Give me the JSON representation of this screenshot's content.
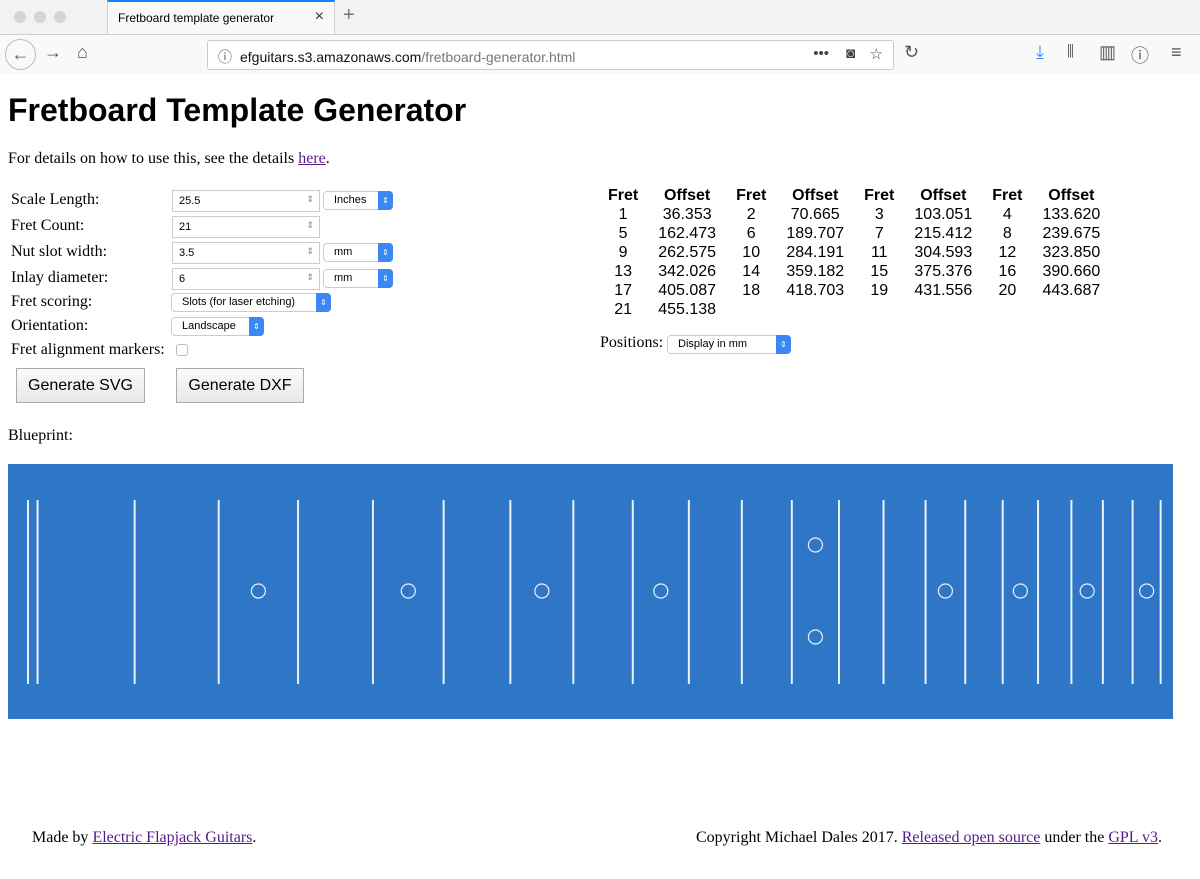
{
  "browser": {
    "tab_title": "Fretboard template generator",
    "url_host": "efguitars.s3.amazonaws.com",
    "url_path": "/fretboard-generator.html"
  },
  "page": {
    "title": "Fretboard Template Generator",
    "intro_before": "For details on how to use this, see the details ",
    "intro_link": "here",
    "intro_after": "."
  },
  "form": {
    "scale_length": {
      "label": "Scale Length:",
      "value": "25.5",
      "unit": "Inches"
    },
    "fret_count": {
      "label": "Fret Count:",
      "value": "21"
    },
    "nut_slot_width": {
      "label": "Nut slot width:",
      "value": "3.5",
      "unit": "mm"
    },
    "inlay_diameter": {
      "label": "Inlay diameter:",
      "value": "6",
      "unit": "mm"
    },
    "fret_scoring": {
      "label": "Fret scoring:",
      "value": "Slots (for laser etching)"
    },
    "orientation": {
      "label": "Orientation:",
      "value": "Landscape"
    },
    "fret_alignment_markers": {
      "label": "Fret alignment markers:",
      "checked": false
    },
    "generate_svg": "Generate SVG",
    "generate_dxf": "Generate DXF"
  },
  "table": {
    "headers": [
      "Fret",
      "Offset"
    ],
    "rows": [
      [
        "1",
        "36.353",
        "2",
        "70.665",
        "3",
        "103.051",
        "4",
        "133.620"
      ],
      [
        "5",
        "162.473",
        "6",
        "189.707",
        "7",
        "215.412",
        "8",
        "239.675"
      ],
      [
        "9",
        "262.575",
        "10",
        "284.191",
        "11",
        "304.593",
        "12",
        "323.850"
      ],
      [
        "13",
        "342.026",
        "14",
        "359.182",
        "15",
        "375.376",
        "16",
        "390.660"
      ],
      [
        "17",
        "405.087",
        "18",
        "418.703",
        "19",
        "431.556",
        "20",
        "443.687"
      ],
      [
        "21",
        "455.138",
        "",
        "",
        "",
        "",
        "",
        ""
      ]
    ]
  },
  "positions": {
    "label": "Positions:",
    "value": "Display in mm"
  },
  "blueprint": {
    "label": "Blueprint:",
    "background": "#2f77c6",
    "inlay_frets": [
      3,
      5,
      7,
      9,
      12,
      15,
      17,
      19,
      21
    ],
    "double_inlay_frets": [
      12
    ]
  },
  "footer": {
    "made_by": "Made by ",
    "made_by_link": "Electric Flapjack Guitars",
    "made_by_after": ".",
    "copyright": "Copyright Michael Dales 2017. ",
    "open_source_link": "Released open source",
    "under": " under the ",
    "gpl_link": "GPL v3",
    "end": "."
  }
}
